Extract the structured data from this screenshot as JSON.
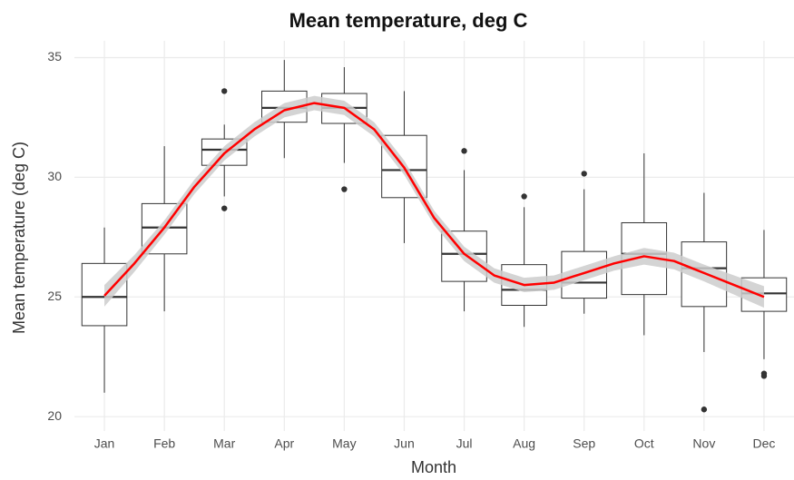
{
  "chart_data": {
    "type": "boxplot",
    "title": "Mean temperature, deg C",
    "xlabel": "Month",
    "ylabel": "Mean temperature (deg C)",
    "categories": [
      "Jan",
      "Feb",
      "Mar",
      "Apr",
      "May",
      "Jun",
      "Jul",
      "Aug",
      "Sep",
      "Oct",
      "Nov",
      "Dec"
    ],
    "boxes": [
      {
        "min": 21.0,
        "q1": 23.8,
        "median": 25.0,
        "q3": 26.4,
        "max": 27.9,
        "outliers": []
      },
      {
        "min": 24.4,
        "q1": 26.8,
        "median": 27.9,
        "q3": 28.9,
        "max": 31.3,
        "outliers": []
      },
      {
        "min": 29.2,
        "q1": 30.5,
        "median": 31.15,
        "q3": 31.6,
        "max": 32.2,
        "outliers": [
          33.6,
          28.7
        ]
      },
      {
        "min": 30.8,
        "q1": 32.3,
        "median": 32.9,
        "q3": 33.6,
        "max": 34.9,
        "outliers": []
      },
      {
        "min": 30.6,
        "q1": 32.25,
        "median": 32.9,
        "q3": 33.5,
        "max": 34.6,
        "outliers": [
          29.5
        ]
      },
      {
        "min": 27.25,
        "q1": 29.15,
        "median": 30.3,
        "q3": 31.75,
        "max": 33.6,
        "outliers": []
      },
      {
        "min": 24.4,
        "q1": 25.65,
        "median": 26.8,
        "q3": 27.75,
        "max": 30.3,
        "outliers": [
          31.1
        ]
      },
      {
        "min": 23.75,
        "q1": 24.65,
        "median": 25.3,
        "q3": 26.35,
        "max": 28.75,
        "outliers": [
          29.2
        ]
      },
      {
        "min": 24.3,
        "q1": 24.95,
        "median": 25.6,
        "q3": 26.9,
        "max": 29.5,
        "outliers": [
          30.15
        ]
      },
      {
        "min": 23.4,
        "q1": 25.1,
        "median": 26.8,
        "q3": 28.1,
        "max": 31.0,
        "outliers": []
      },
      {
        "min": 22.7,
        "q1": 24.6,
        "median": 26.2,
        "q3": 27.3,
        "max": 29.35,
        "outliers": [
          20.3
        ]
      },
      {
        "min": 22.4,
        "q1": 24.4,
        "median": 25.15,
        "q3": 25.8,
        "max": 27.8,
        "outliers": [
          21.8,
          21.7
        ]
      }
    ],
    "box_color": "#333333",
    "smooth": {
      "color": "#ff0000",
      "band_color": "#cccccc",
      "x": [
        1,
        1.5,
        2,
        2.5,
        3,
        3.5,
        4,
        4.5,
        5,
        5.5,
        6,
        6.5,
        7,
        7.5,
        8,
        8.5,
        9,
        9.5,
        10,
        10.5,
        11,
        11.5,
        12
      ],
      "values": [
        25.05,
        26.4,
        27.9,
        29.6,
        31.0,
        32.0,
        32.8,
        33.1,
        32.9,
        32.0,
        30.4,
        28.3,
        26.8,
        25.9,
        25.5,
        25.6,
        26.0,
        26.4,
        26.7,
        26.5,
        26.0,
        25.5,
        25.0
      ],
      "lower": [
        24.6,
        26.05,
        27.6,
        29.3,
        30.7,
        31.7,
        32.5,
        32.8,
        32.6,
        31.7,
        30.1,
        28.0,
        26.5,
        25.6,
        25.2,
        25.3,
        25.7,
        26.1,
        26.35,
        26.15,
        25.65,
        25.1,
        24.55
      ],
      "upper": [
        25.5,
        26.75,
        28.2,
        29.9,
        31.3,
        32.3,
        33.1,
        33.4,
        33.2,
        32.3,
        30.7,
        28.6,
        27.1,
        26.2,
        25.8,
        25.9,
        26.3,
        26.7,
        27.05,
        26.85,
        26.35,
        25.9,
        25.45
      ]
    },
    "ylim": [
      19.4,
      35.7
    ],
    "yticks": [
      20,
      25,
      30,
      35
    ],
    "grid": true
  }
}
